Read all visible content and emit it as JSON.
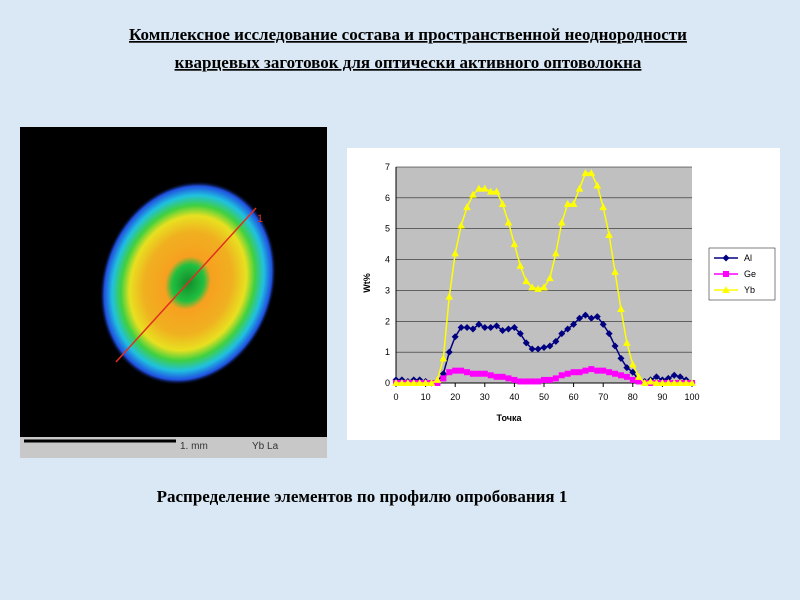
{
  "header": {
    "title_lines": [
      "Комплексное исследование состава и пространственной неоднородности",
      "кварцевых заготовок для оптически активного оптоволокна"
    ]
  },
  "image": {
    "line_label": "1",
    "scale_label": "1. mm",
    "element_label": "Yb La"
  },
  "chart_data": {
    "type": "line",
    "x": [
      0,
      2,
      4,
      6,
      8,
      10,
      12,
      14,
      16,
      18,
      20,
      22,
      24,
      26,
      28,
      30,
      32,
      34,
      36,
      38,
      40,
      42,
      44,
      46,
      48,
      50,
      52,
      54,
      56,
      58,
      60,
      62,
      64,
      66,
      68,
      70,
      72,
      74,
      76,
      78,
      80,
      82,
      84,
      86,
      88,
      90,
      92,
      94,
      96,
      98,
      100
    ],
    "series": [
      {
        "name": "Al",
        "color": "#000080",
        "marker": "diamond",
        "values": [
          0.1,
          0.1,
          0.05,
          0.1,
          0.1,
          0.05,
          0,
          0.05,
          0.3,
          1.0,
          1.5,
          1.8,
          1.8,
          1.75,
          1.9,
          1.8,
          1.8,
          1.85,
          1.7,
          1.75,
          1.8,
          1.6,
          1.3,
          1.1,
          1.1,
          1.15,
          1.2,
          1.35,
          1.6,
          1.75,
          1.9,
          2.1,
          2.2,
          2.1,
          2.15,
          1.9,
          1.6,
          1.2,
          0.8,
          0.5,
          0.35,
          0.1,
          0.05,
          0.1,
          0.2,
          0.1,
          0.15,
          0.25,
          0.2,
          0.1,
          0
        ]
      },
      {
        "name": "Ge",
        "color": "#ff00ff",
        "marker": "square",
        "values": [
          0,
          0,
          0,
          0,
          0,
          0,
          0,
          0,
          0.15,
          0.35,
          0.4,
          0.4,
          0.35,
          0.3,
          0.3,
          0.3,
          0.25,
          0.2,
          0.2,
          0.15,
          0.1,
          0.05,
          0.05,
          0.05,
          0.05,
          0.1,
          0.1,
          0.15,
          0.25,
          0.3,
          0.35,
          0.35,
          0.4,
          0.45,
          0.4,
          0.4,
          0.35,
          0.3,
          0.25,
          0.2,
          0.1,
          0.05,
          0,
          0,
          0,
          0,
          0,
          0,
          0,
          0,
          0
        ]
      },
      {
        "name": "Yb",
        "color": "#ffff00",
        "marker": "triangle",
        "values": [
          0,
          0,
          0,
          0,
          0,
          0,
          0,
          0.1,
          0.8,
          2.8,
          4.2,
          5.1,
          5.7,
          6.1,
          6.3,
          6.3,
          6.2,
          6.2,
          5.8,
          5.2,
          4.5,
          3.8,
          3.3,
          3.1,
          3.05,
          3.1,
          3.4,
          4.2,
          5.2,
          5.8,
          5.8,
          6.3,
          6.8,
          6.8,
          6.4,
          5.7,
          4.8,
          3.6,
          2.4,
          1.3,
          0.6,
          0.2,
          0,
          0.05,
          0,
          0,
          0,
          0,
          0,
          0,
          0
        ]
      }
    ],
    "xlim": [
      0,
      100
    ],
    "xticks": [
      0,
      10,
      20,
      30,
      40,
      50,
      60,
      70,
      80,
      90,
      100
    ],
    "ylim": [
      0,
      7
    ],
    "yticks": [
      0,
      1,
      2,
      3,
      4,
      5,
      6,
      7
    ],
    "xlabel": "Точка",
    "ylabel": "Wt%",
    "grid": true,
    "legend": "right"
  },
  "caption": "Распределение элементов по профилю опробования 1"
}
